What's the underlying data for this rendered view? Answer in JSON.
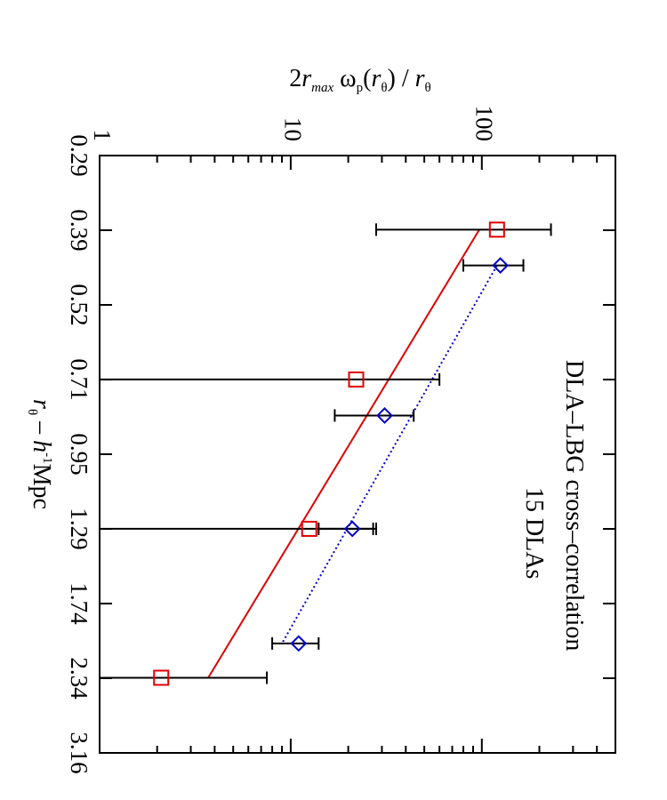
{
  "chart_data": {
    "type": "scatter",
    "orientation": "rotated-90-clockwise",
    "xscale": "log",
    "yscale": "log",
    "ylim": [
      1,
      500
    ],
    "x_ticks": [
      "0.29",
      "0.39",
      "0.52",
      "0.71",
      "0.95",
      "1.29",
      "1.74",
      "2.34",
      "3.16"
    ],
    "y_ticks": [
      {
        "value": 1,
        "label": "1"
      },
      {
        "value": 10,
        "label": "10"
      },
      {
        "value": 100,
        "label": "100"
      }
    ],
    "ylabel": {
      "pre": "2",
      "r": "r",
      "sub_max": "max",
      "omega": " ω",
      "sub_p": "p",
      "paren_open": "(",
      "r2": "r",
      "theta1": "θ",
      "paren_close": ") / ",
      "r3": "r",
      "theta2": "θ"
    },
    "xlabel": {
      "r": "r",
      "theta": "θ",
      "dash": " – ",
      "h": "h",
      "sup": "-1",
      "unit": "Mpc"
    },
    "annotations": [
      "DLA–LBG cross–correlation",
      "15 DLAs"
    ],
    "series": [
      {
        "marker": "square",
        "color": "#e00000",
        "points": [
          {
            "x": 0.39,
            "y": 120,
            "ylo": 28,
            "yhi": 230
          },
          {
            "x": 0.71,
            "y": 22,
            "ylo": 1,
            "yhi": 60
          },
          {
            "x": 1.29,
            "y": 12.5,
            "ylo": 1,
            "yhi": 28
          },
          {
            "x": 2.34,
            "y": 2.1,
            "ylo": 1,
            "yhi": 7.5
          }
        ],
        "fit": {
          "style": "solid",
          "x": [
            0.39,
            2.34
          ],
          "y": [
            97,
            3.7
          ]
        }
      },
      {
        "marker": "diamond",
        "color": "#0000cc",
        "points": [
          {
            "x": 0.45,
            "y": 125,
            "ylo": 80,
            "yhi": 165
          },
          {
            "x": 0.82,
            "y": 31,
            "ylo": 17,
            "yhi": 44
          },
          {
            "x": 1.29,
            "y": 21,
            "ylo": 14,
            "yhi": 27
          },
          {
            "x": 2.04,
            "y": 11,
            "ylo": 8,
            "yhi": 14
          }
        ],
        "fit": {
          "style": "dotted",
          "x": [
            0.45,
            2.04
          ],
          "y": [
            120,
            9
          ]
        }
      }
    ]
  }
}
